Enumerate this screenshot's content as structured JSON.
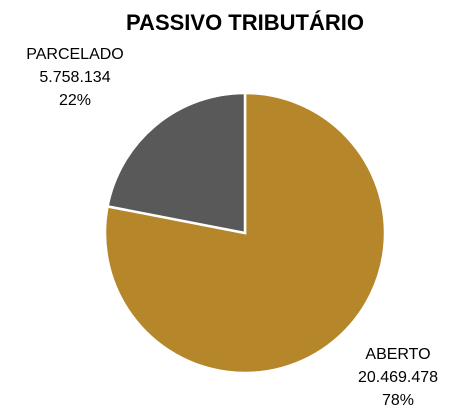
{
  "chart_data": {
    "type": "pie",
    "title": "PASSIVO TRIBUTÁRIO",
    "categories": [
      "ABERTO",
      "PARCELADO"
    ],
    "values": [
      20469478,
      5758134
    ],
    "value_labels": [
      "20.469.478",
      "5.758.134"
    ],
    "percents": [
      78,
      22
    ],
    "percent_labels": [
      "78%",
      "22%"
    ],
    "colors": [
      "#b5862a",
      "#595959"
    ]
  }
}
